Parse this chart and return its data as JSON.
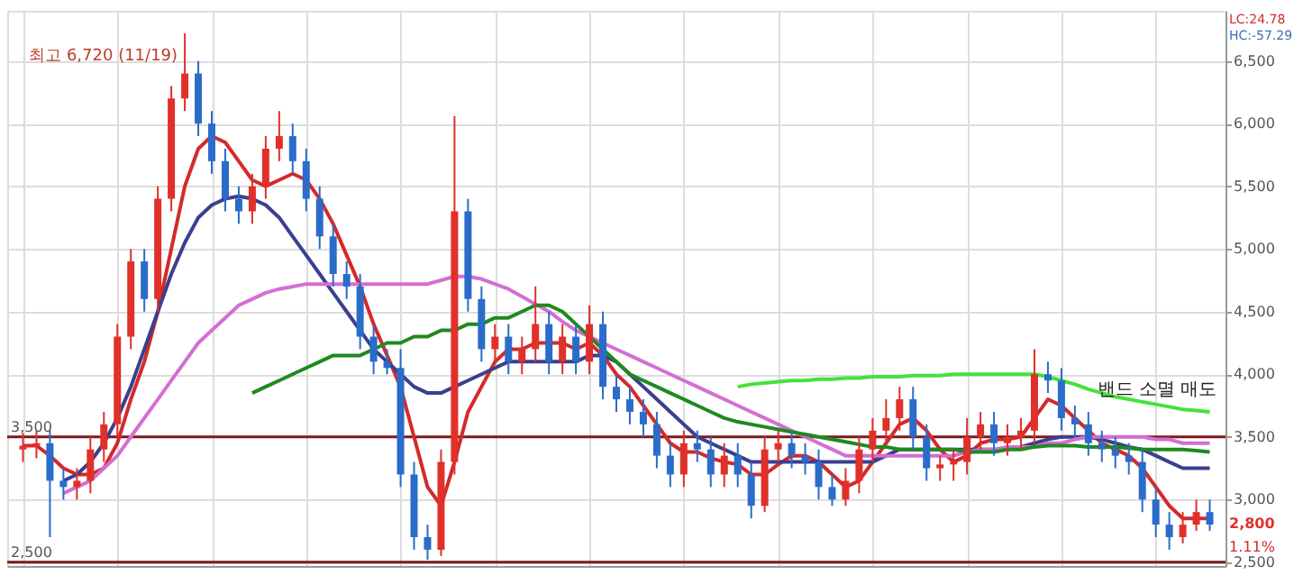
{
  "chart_data": {
    "type": "candlestick",
    "categories": [
      null,
      null,
      null,
      null,
      null,
      null,
      null,
      null,
      null,
      null,
      null,
      null,
      null,
      null,
      null,
      null,
      null,
      null,
      null,
      null,
      null,
      null,
      null,
      null,
      null,
      null,
      null,
      null,
      null,
      null,
      null,
      null,
      null,
      null,
      null,
      null,
      null,
      null,
      null,
      null,
      null,
      null,
      null,
      null,
      null,
      null,
      null,
      null,
      null,
      null,
      null,
      null,
      null,
      null,
      null,
      null,
      null,
      null,
      null,
      null,
      null,
      null,
      null,
      null,
      null,
      null,
      null,
      null,
      null,
      null,
      null,
      null,
      null,
      null,
      null,
      null,
      null,
      null,
      null,
      null,
      null,
      null,
      null,
      null,
      null,
      null,
      null,
      null,
      null
    ],
    "ohlc": [
      [
        3400,
        3530,
        3300,
        3430
      ],
      [
        3430,
        3550,
        3330,
        3450
      ],
      [
        3450,
        3550,
        2700,
        3150
      ],
      [
        3150,
        3250,
        3000,
        3100
      ],
      [
        3100,
        3250,
        3000,
        3150
      ],
      [
        3150,
        3500,
        3050,
        3400
      ],
      [
        3400,
        3700,
        3300,
        3600
      ],
      [
        3600,
        4400,
        3500,
        4300
      ],
      [
        4300,
        5000,
        4200,
        4900
      ],
      [
        4900,
        5000,
        4500,
        4600
      ],
      [
        4600,
        5500,
        4500,
        5400
      ],
      [
        5400,
        6300,
        5300,
        6200
      ],
      [
        6200,
        6720,
        6100,
        6400
      ],
      [
        6400,
        6500,
        5900,
        6000
      ],
      [
        6000,
        6100,
        5600,
        5700
      ],
      [
        5700,
        5800,
        5300,
        5400
      ],
      [
        5400,
        5500,
        5200,
        5300
      ],
      [
        5300,
        5600,
        5200,
        5500
      ],
      [
        5500,
        5900,
        5400,
        5800
      ],
      [
        5800,
        6100,
        5700,
        5900
      ],
      [
        5900,
        6000,
        5600,
        5700
      ],
      [
        5700,
        5800,
        5300,
        5400
      ],
      [
        5400,
        5500,
        5000,
        5100
      ],
      [
        5100,
        5200,
        4700,
        4800
      ],
      [
        4800,
        4900,
        4600,
        4700
      ],
      [
        4700,
        4800,
        4200,
        4300
      ],
      [
        4300,
        4400,
        4000,
        4100
      ],
      [
        4100,
        4200,
        4000,
        4050
      ],
      [
        4050,
        4200,
        3100,
        3200
      ],
      [
        3200,
        3300,
        2600,
        2700
      ],
      [
        2700,
        2800,
        2520,
        2600
      ],
      [
        2600,
        3400,
        2550,
        3300
      ],
      [
        3300,
        6060,
        3200,
        5300
      ],
      [
        5300,
        5400,
        4500,
        4600
      ],
      [
        4600,
        4700,
        4100,
        4200
      ],
      [
        4200,
        4400,
        4100,
        4300
      ],
      [
        4300,
        4400,
        4000,
        4100
      ],
      [
        4100,
        4300,
        4000,
        4200
      ],
      [
        4200,
        4700,
        4100,
        4400
      ],
      [
        4400,
        4500,
        4000,
        4100
      ],
      [
        4100,
        4400,
        4000,
        4300
      ],
      [
        4300,
        4400,
        4000,
        4100
      ],
      [
        4100,
        4550,
        4000,
        4400
      ],
      [
        4400,
        4500,
        3800,
        3900
      ],
      [
        3900,
        4000,
        3700,
        3800
      ],
      [
        3800,
        3900,
        3600,
        3700
      ],
      [
        3700,
        3800,
        3500,
        3600
      ],
      [
        3600,
        3700,
        3250,
        3350
      ],
      [
        3350,
        3450,
        3100,
        3200
      ],
      [
        3200,
        3550,
        3100,
        3450
      ],
      [
        3450,
        3550,
        3300,
        3400
      ],
      [
        3400,
        3500,
        3100,
        3200
      ],
      [
        3200,
        3450,
        3100,
        3350
      ],
      [
        3350,
        3450,
        3100,
        3200
      ],
      [
        3200,
        3300,
        2850,
        2950
      ],
      [
        2950,
        3500,
        2900,
        3400
      ],
      [
        3400,
        3550,
        3300,
        3450
      ],
      [
        3450,
        3550,
        3250,
        3350
      ],
      [
        3350,
        3450,
        3200,
        3300
      ],
      [
        3300,
        3400,
        3000,
        3100
      ],
      [
        3100,
        3200,
        2950,
        3000
      ],
      [
        3000,
        3250,
        2950,
        3150
      ],
      [
        3150,
        3500,
        3050,
        3400
      ],
      [
        3400,
        3650,
        3300,
        3550
      ],
      [
        3550,
        3800,
        3450,
        3650
      ],
      [
        3650,
        3900,
        3550,
        3800
      ],
      [
        3800,
        3900,
        3400,
        3500
      ],
      [
        3500,
        3600,
        3150,
        3250
      ],
      [
        3250,
        3350,
        3150,
        3280
      ],
      [
        3280,
        3400,
        3150,
        3300
      ],
      [
        3300,
        3650,
        3200,
        3500
      ],
      [
        3500,
        3700,
        3400,
        3600
      ],
      [
        3600,
        3700,
        3350,
        3450
      ],
      [
        3450,
        3600,
        3350,
        3500
      ],
      [
        3500,
        3650,
        3400,
        3550
      ],
      [
        3550,
        4200,
        3450,
        4000
      ],
      [
        4000,
        4100,
        3850,
        3950
      ],
      [
        3950,
        4050,
        3550,
        3650
      ],
      [
        3650,
        3750,
        3500,
        3600
      ],
      [
        3600,
        3700,
        3350,
        3450
      ],
      [
        3450,
        3550,
        3300,
        3400
      ],
      [
        3400,
        3500,
        3250,
        3350
      ],
      [
        3350,
        3450,
        3200,
        3300
      ],
      [
        3300,
        3400,
        2900,
        3000
      ],
      [
        3000,
        3100,
        2700,
        2800
      ],
      [
        2800,
        2900,
        2600,
        2700
      ],
      [
        2700,
        2900,
        2650,
        2800
      ],
      [
        2800,
        3000,
        2750,
        2900
      ],
      [
        2900,
        3000,
        2750,
        2800
      ]
    ],
    "series": [
      {
        "type": "line",
        "color": "#d42a2a",
        "values": [
          3430,
          3430,
          3350,
          3250,
          3200,
          3200,
          3250,
          3450,
          3800,
          4100,
          4500,
          5000,
          5500,
          5800,
          5900,
          5850,
          5700,
          5550,
          5500,
          5550,
          5600,
          5550,
          5400,
          5200,
          4950,
          4700,
          4400,
          4150,
          3900,
          3500,
          3100,
          2950,
          3300,
          3700,
          3900,
          4100,
          4200,
          4200,
          4250,
          4250,
          4250,
          4200,
          4250,
          4150,
          4000,
          3900,
          3750,
          3600,
          3450,
          3380,
          3380,
          3330,
          3300,
          3280,
          3200,
          3200,
          3280,
          3350,
          3350,
          3300,
          3200,
          3100,
          3150,
          3300,
          3450,
          3600,
          3650,
          3550,
          3400,
          3300,
          3350,
          3450,
          3480,
          3480,
          3500,
          3650,
          3800,
          3750,
          3650,
          3550,
          3450,
          3400,
          3350,
          3250,
          3100,
          2950,
          2850,
          2850,
          2850
        ]
      },
      {
        "type": "line",
        "color": "#3b3f8f",
        "values": [
          null,
          null,
          null,
          3150,
          3200,
          3300,
          3450,
          3650,
          3900,
          4200,
          4500,
          4800,
          5050,
          5250,
          5350,
          5400,
          5420,
          5400,
          5350,
          5250,
          5100,
          4950,
          4800,
          4650,
          4500,
          4350,
          4200,
          4100,
          4000,
          3900,
          3850,
          3850,
          3900,
          3950,
          4000,
          4050,
          4100,
          4100,
          4100,
          4100,
          4100,
          4100,
          4150,
          4150,
          4100,
          4000,
          3900,
          3800,
          3700,
          3600,
          3500,
          3450,
          3400,
          3350,
          3300,
          3300,
          3300,
          3300,
          3300,
          3300,
          3300,
          3300,
          3300,
          3300,
          3350,
          3400,
          3400,
          3400,
          3400,
          3400,
          3400,
          3400,
          3400,
          3400,
          3420,
          3450,
          3480,
          3500,
          3500,
          3500,
          3480,
          3450,
          3420,
          3400,
          3350,
          3300,
          3250,
          3250,
          3250
        ]
      },
      {
        "type": "line",
        "color": "#d36fd3",
        "values": [
          null,
          null,
          null,
          3050,
          3100,
          3150,
          3250,
          3350,
          3500,
          3650,
          3800,
          3950,
          4100,
          4250,
          4350,
          4450,
          4550,
          4600,
          4650,
          4680,
          4700,
          4720,
          4720,
          4720,
          4720,
          4720,
          4720,
          4720,
          4720,
          4720,
          4720,
          4750,
          4780,
          4780,
          4760,
          4720,
          4680,
          4620,
          4560,
          4500,
          4420,
          4350,
          4300,
          4250,
          4200,
          4150,
          4100,
          4050,
          4000,
          3950,
          3900,
          3850,
          3800,
          3750,
          3700,
          3650,
          3600,
          3550,
          3500,
          3450,
          3400,
          3350,
          3350,
          3350,
          3350,
          3350,
          3350,
          3350,
          3350,
          3350,
          3380,
          3400,
          3400,
          3420,
          3420,
          3420,
          3450,
          3450,
          3480,
          3500,
          3500,
          3500,
          3500,
          3500,
          3480,
          3480,
          3450,
          3450,
          3450
        ]
      },
      {
        "type": "line",
        "color": "#1f8a1f",
        "values": [
          null,
          null,
          null,
          null,
          null,
          null,
          null,
          null,
          null,
          null,
          null,
          null,
          null,
          null,
          null,
          null,
          null,
          3850,
          3900,
          3950,
          4000,
          4050,
          4100,
          4150,
          4150,
          4150,
          4200,
          4250,
          4250,
          4300,
          4300,
          4350,
          4350,
          4400,
          4400,
          4450,
          4450,
          4500,
          4550,
          4550,
          4500,
          4400,
          4300,
          4200,
          4100,
          4000,
          3950,
          3900,
          3850,
          3800,
          3750,
          3700,
          3650,
          3620,
          3600,
          3580,
          3560,
          3540,
          3520,
          3500,
          3480,
          3460,
          3440,
          3420,
          3420,
          3400,
          3400,
          3400,
          3400,
          3400,
          3380,
          3380,
          3380,
          3400,
          3400,
          3420,
          3430,
          3430,
          3430,
          3420,
          3420,
          3420,
          3410,
          3400,
          3400,
          3400,
          3400,
          3390,
          3380
        ]
      },
      {
        "type": "line",
        "color": "#44e23c",
        "values": [
          null,
          null,
          null,
          null,
          null,
          null,
          null,
          null,
          null,
          null,
          null,
          null,
          null,
          null,
          null,
          null,
          null,
          null,
          null,
          null,
          null,
          null,
          null,
          null,
          null,
          null,
          null,
          null,
          null,
          null,
          null,
          null,
          null,
          null,
          null,
          null,
          null,
          null,
          null,
          null,
          null,
          null,
          null,
          null,
          null,
          null,
          null,
          null,
          null,
          null,
          null,
          null,
          null,
          3900,
          3920,
          3930,
          3940,
          3950,
          3950,
          3960,
          3960,
          3970,
          3970,
          3980,
          3980,
          3980,
          3990,
          3990,
          3990,
          4000,
          4000,
          4000,
          4000,
          4000,
          4000,
          4000,
          3980,
          3950,
          3920,
          3880,
          3850,
          3820,
          3800,
          3780,
          3760,
          3740,
          3720,
          3710,
          3700
        ]
      }
    ],
    "ylim": [
      2470,
      6900
    ],
    "yticks": [
      {
        "value": 2500,
        "label": "2,500"
      },
      {
        "value": 3000,
        "label": "3,000"
      },
      {
        "value": 3500,
        "label": "3,500"
      },
      {
        "value": 4000,
        "label": "4,000"
      },
      {
        "value": 4500,
        "label": "4,500"
      },
      {
        "value": 5000,
        "label": "5,000"
      },
      {
        "value": 5500,
        "label": "5,500"
      },
      {
        "value": 6000,
        "label": "6,000"
      },
      {
        "value": 6500,
        "label": "6,500"
      }
    ],
    "grid": true,
    "tick_labels": "y",
    "ref_lines": [
      {
        "axis": "y",
        "value": 3500,
        "label": "3,500",
        "color": "#7b1a1a"
      },
      {
        "axis": "y",
        "value": 2500,
        "label": "2,500",
        "color": "#7b1a1a"
      }
    ],
    "annotations": [
      "최고 6,720 (11/19)",
      "LC:24.78",
      "HC:-57.29",
      "2,800",
      "1.11%",
      "밴드 소멸 매도"
    ]
  }
}
